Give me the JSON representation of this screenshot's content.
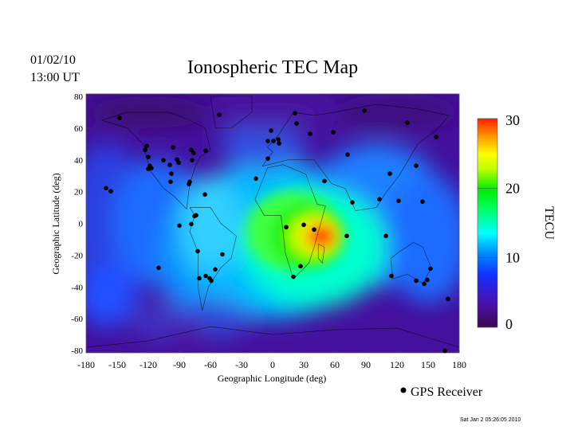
{
  "header": {
    "date": "01/02/10",
    "time": "13:00 UT",
    "timestamp": "Sat Jan  2 05:26:05 2010"
  },
  "chart_data": {
    "type": "heatmap",
    "title": "Ionospheric TEC Map",
    "xlabel": "Geographic Longitude (deg)",
    "ylabel": "Geographic Latitude (deg)",
    "xlim": [
      -180,
      180
    ],
    "ylim": [
      -80,
      80
    ],
    "xticks": [
      "-180",
      "-150",
      "-120",
      "-90",
      "-60",
      "-30",
      "0",
      "30",
      "60",
      "90",
      "120",
      "150",
      "180"
    ],
    "yticks": [
      "80",
      "60",
      "40",
      "20",
      "0",
      "-20",
      "-40",
      "-60",
      "-80"
    ],
    "colorbar": {
      "label": "TECU",
      "range": [
        0,
        30
      ],
      "ticks": [
        "30",
        "20",
        "10",
        "0"
      ]
    },
    "peak": {
      "lon": 45,
      "lat": -8,
      "value": 30
    },
    "legend": {
      "marker": "filled-circle",
      "label": "GPS Receiver",
      "position": "bottom-right"
    },
    "receivers": [
      [
        -147.7,
        66.4
      ],
      [
        -121.5,
        48.8
      ],
      [
        -123,
        46.3
      ],
      [
        -120,
        41.8
      ],
      [
        -118.5,
        36.3
      ],
      [
        -117,
        34.8
      ],
      [
        -120,
        34.3
      ],
      [
        -96,
        47.8
      ],
      [
        -105.4,
        39.8
      ],
      [
        -99.2,
        36.8
      ],
      [
        -92.3,
        40.3
      ],
      [
        -90.8,
        38.3
      ],
      [
        -97.7,
        31.3
      ],
      [
        -98.5,
        26.2
      ],
      [
        -78.5,
        46.3
      ],
      [
        -76.2,
        44.3
      ],
      [
        -77.7,
        39.8
      ],
      [
        -64.6,
        45.8
      ],
      [
        -80,
        26.2
      ],
      [
        -80.8,
        24.7
      ],
      [
        -65.4,
        18.2
      ],
      [
        -90,
        -1.4
      ],
      [
        -78.5,
        -0.4
      ],
      [
        -75.4,
        4.6
      ],
      [
        -73.8,
        5.1
      ],
      [
        -72.3,
        -17.5
      ],
      [
        -70.8,
        -34.6
      ],
      [
        -64.6,
        -33.1
      ],
      [
        -60.8,
        -34.6
      ],
      [
        -59.2,
        -36.1
      ],
      [
        -55.4,
        -29
      ],
      [
        -48.5,
        -19.5
      ],
      [
        -160.8,
        22.2
      ],
      [
        -156.2,
        20.2
      ],
      [
        -110,
        -28
      ],
      [
        -51.5,
        68.4
      ],
      [
        -1.5,
        58.4
      ],
      [
        -4.6,
        51.9
      ],
      [
        0.8,
        51.9
      ],
      [
        5.4,
        52.9
      ],
      [
        6.2,
        50.4
      ],
      [
        -4.6,
        40.8
      ],
      [
        -16.2,
        28.2
      ],
      [
        21.5,
        69.4
      ],
      [
        23.1,
        62.9
      ],
      [
        36.2,
        56.4
      ],
      [
        58.5,
        57.4
      ],
      [
        88.5,
        71
      ],
      [
        130,
        63.4
      ],
      [
        157.7,
        54.4
      ],
      [
        72.3,
        43.3
      ],
      [
        50,
        26.7
      ],
      [
        76.9,
        13.2
      ],
      [
        13.1,
        -2.4
      ],
      [
        30,
        -0.9
      ],
      [
        40,
        -3.9
      ],
      [
        71.5,
        -7.9
      ],
      [
        103,
        15.2
      ],
      [
        109.2,
        -7.9
      ],
      [
        114.6,
        -33.1
      ],
      [
        113.1,
        31.3
      ],
      [
        121.5,
        14.2
      ],
      [
        138.5,
        36.3
      ],
      [
        144.6,
        13.7
      ],
      [
        138.5,
        -36.1
      ],
      [
        146.2,
        -38.1
      ],
      [
        149.2,
        -35.6
      ],
      [
        152.3,
        -28.5
      ],
      [
        169.2,
        -47.6
      ],
      [
        166.2,
        -80.3
      ],
      [
        26.9,
        -27
      ],
      [
        20,
        -33.6
      ]
    ]
  },
  "colors": {
    "background_low": "#40099a",
    "colormap": [
      "#3c0a4c",
      "#4a10b0",
      "#1030ff",
      "#00a0ff",
      "#00ffff",
      "#00e040",
      "#00ff00",
      "#c0ff00",
      "#ffff00",
      "#ff9000",
      "#ff2000"
    ]
  }
}
